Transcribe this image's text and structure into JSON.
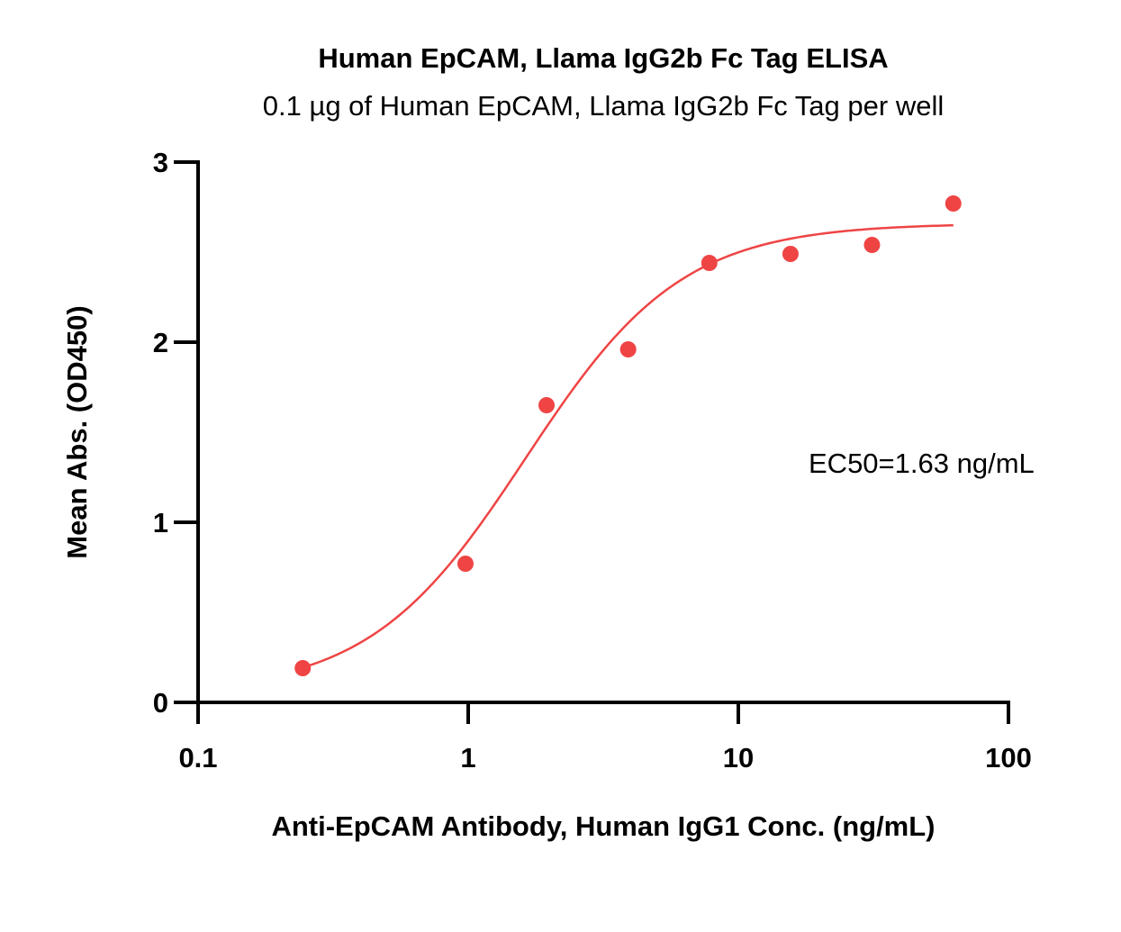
{
  "chart_data": {
    "type": "scatter",
    "title": "Human EpCAM, Llama IgG2b Fc Tag ELISA",
    "subtitle": "0.1 µg of Human EpCAM, Llama IgG2b Fc Tag per well",
    "xlabel": "Anti-EpCAM Antibody, Human IgG1 Conc. (ng/mL)",
    "ylabel": "Mean Abs. (OD450)",
    "x_scale": "log",
    "xlim": [
      0.1,
      100
    ],
    "ylim": [
      0,
      3
    ],
    "x_ticks": [
      "0.1",
      "1",
      "10",
      "100"
    ],
    "y_ticks": [
      "0",
      "1",
      "2",
      "3"
    ],
    "grid": false,
    "annotation": "EC50=1.63 ng/mL",
    "color": "#ef4444",
    "series": [
      {
        "x": [
          0.244,
          0.977,
          1.95,
          3.91,
          7.81,
          15.6,
          31.25,
          62.5
        ],
        "y": [
          0.19,
          0.77,
          1.65,
          1.96,
          2.44,
          2.49,
          2.54,
          2.77
        ]
      }
    ],
    "fit_curve": {
      "model": "4PL",
      "bottom": 0.05,
      "top": 2.66,
      "ec50": 1.63,
      "hill": 1.5,
      "x_range": [
        0.244,
        62.5
      ]
    }
  }
}
